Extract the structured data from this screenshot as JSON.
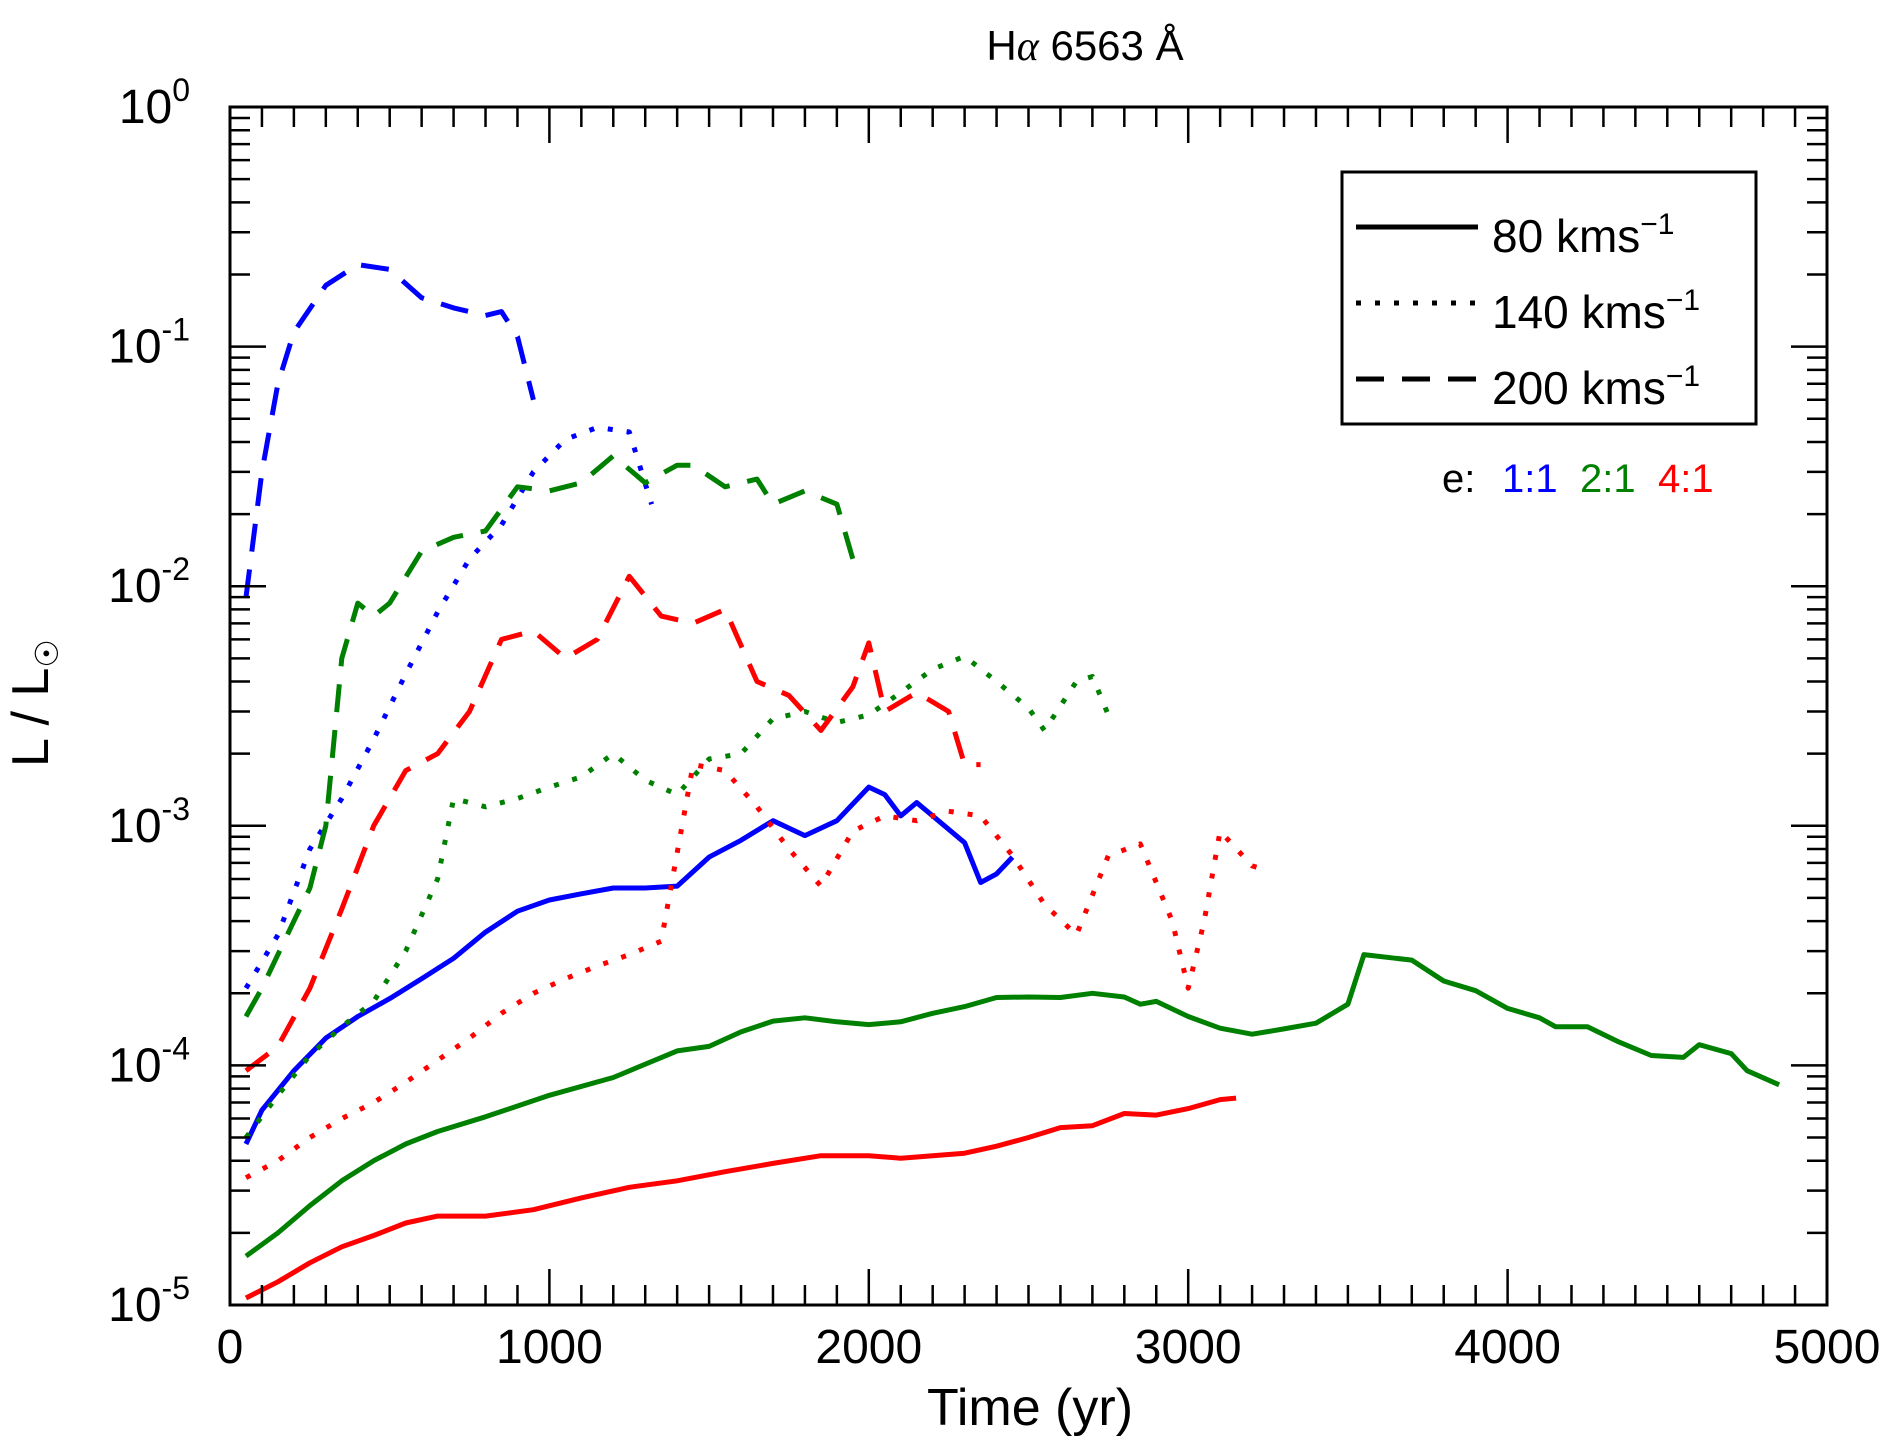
{
  "chart_data": {
    "type": "line",
    "title": "Hα 6563 Å",
    "title_main": "H",
    "title_italic": "α",
    "title_rest": " 6563 Å",
    "xlabel": "Time (yr)",
    "ylabel": "L / L☉",
    "ylabel_main": "L / L",
    "ylabel_sub": "☉",
    "xlim": [
      0,
      5000
    ],
    "ylim": [
      1e-05,
      1
    ],
    "yscale": "log",
    "x_ticks": [
      0,
      1000,
      2000,
      3000,
      4000,
      5000
    ],
    "x_tick_labels": [
      "0",
      "1000",
      "2000",
      "3000",
      "4000",
      "5000"
    ],
    "y_ticks": [
      1e-05,
      0.0001,
      0.001,
      0.01,
      0.1,
      1
    ],
    "y_tick_labels": [
      {
        "base": "10",
        "exp": "-5"
      },
      {
        "base": "10",
        "exp": "-4"
      },
      {
        "base": "10",
        "exp": "-3"
      },
      {
        "base": "10",
        "exp": "-2"
      },
      {
        "base": "10",
        "exp": "-1"
      },
      {
        "base": "10",
        "exp": "0"
      }
    ],
    "legend": {
      "placement": "top-right",
      "entries": [
        {
          "style": "solid",
          "label": "80 kms",
          "sup": "−1"
        },
        {
          "style": "dotted",
          "label": "140 kms",
          "sup": "−1"
        },
        {
          "style": "dashed",
          "label": "200 kms",
          "sup": "−1"
        }
      ]
    },
    "ratio_key": {
      "prefix": "e:",
      "items": [
        {
          "label": "1:1",
          "color": "#0000ff"
        },
        {
          "label": "2:1",
          "color": "#008000"
        },
        {
          "label": "4:1",
          "color": "#ff0000"
        }
      ]
    },
    "series": [
      {
        "name": "80 kms-1 e 1:1",
        "style": "solid",
        "color": "#0000ff",
        "points": [
          [
            50,
            4.7e-05
          ],
          [
            100,
            6.5e-05
          ],
          [
            200,
            9.5e-05
          ],
          [
            300,
            0.00013
          ],
          [
            400,
            0.00016
          ],
          [
            500,
            0.00019
          ],
          [
            600,
            0.00023
          ],
          [
            700,
            0.00028
          ],
          [
            800,
            0.00036
          ],
          [
            900,
            0.00044
          ],
          [
            1000,
            0.00049
          ],
          [
            1100,
            0.00052
          ],
          [
            1200,
            0.00055
          ],
          [
            1300,
            0.00055
          ],
          [
            1400,
            0.00056
          ],
          [
            1500,
            0.00074
          ],
          [
            1600,
            0.00087
          ],
          [
            1700,
            0.00105
          ],
          [
            1800,
            0.00091
          ],
          [
            1900,
            0.00105
          ],
          [
            2000,
            0.00145
          ],
          [
            2050,
            0.00135
          ],
          [
            2100,
            0.0011
          ],
          [
            2150,
            0.00125
          ],
          [
            2200,
            0.0011
          ],
          [
            2300,
            0.00085
          ],
          [
            2350,
            0.00058
          ],
          [
            2400,
            0.00063
          ],
          [
            2450,
            0.00074
          ]
        ]
      },
      {
        "name": "140 kms-1 e 1:1",
        "style": "dotted",
        "color": "#0000ff",
        "points": [
          [
            50,
            0.00021
          ],
          [
            150,
            0.00035
          ],
          [
            250,
            0.0008
          ],
          [
            350,
            0.0013
          ],
          [
            450,
            0.0023
          ],
          [
            550,
            0.0043
          ],
          [
            650,
            0.0078
          ],
          [
            750,
            0.013
          ],
          [
            850,
            0.018
          ],
          [
            950,
            0.03
          ],
          [
            1050,
            0.041
          ],
          [
            1150,
            0.046
          ],
          [
            1250,
            0.044
          ],
          [
            1320,
            0.022
          ]
        ]
      },
      {
        "name": "200 kms-1 e 1:1",
        "style": "dashed",
        "color": "#0000ff",
        "points": [
          [
            50,
            0.009
          ],
          [
            100,
            0.03
          ],
          [
            150,
            0.07
          ],
          [
            200,
            0.115
          ],
          [
            300,
            0.18
          ],
          [
            400,
            0.22
          ],
          [
            500,
            0.21
          ],
          [
            600,
            0.16
          ],
          [
            700,
            0.145
          ],
          [
            800,
            0.135
          ],
          [
            850,
            0.14
          ],
          [
            900,
            0.11
          ],
          [
            950,
            0.06
          ]
        ]
      },
      {
        "name": "80 kms-1 e 2:1",
        "style": "solid",
        "color": "#008000",
        "points": [
          [
            50,
            1.6e-05
          ],
          [
            150,
            2e-05
          ],
          [
            250,
            2.6e-05
          ],
          [
            350,
            3.3e-05
          ],
          [
            450,
            4e-05
          ],
          [
            550,
            4.7e-05
          ],
          [
            650,
            5.3e-05
          ],
          [
            800,
            6.1e-05
          ],
          [
            1000,
            7.5e-05
          ],
          [
            1200,
            8.9e-05
          ],
          [
            1400,
            0.000115
          ],
          [
            1500,
            0.00012
          ],
          [
            1600,
            0.000138
          ],
          [
            1700,
            0.000153
          ],
          [
            1800,
            0.000158
          ],
          [
            1900,
            0.000152
          ],
          [
            2000,
            0.000148
          ],
          [
            2100,
            0.000152
          ],
          [
            2200,
            0.000165
          ],
          [
            2300,
            0.000176
          ],
          [
            2400,
            0.000192
          ],
          [
            2500,
            0.000193
          ],
          [
            2600,
            0.000192
          ],
          [
            2700,
            0.0002
          ],
          [
            2800,
            0.000193
          ],
          [
            2850,
            0.00018
          ],
          [
            2900,
            0.000185
          ],
          [
            3000,
            0.00016
          ],
          [
            3100,
            0.000143
          ],
          [
            3200,
            0.000135
          ],
          [
            3300,
            0.000142
          ],
          [
            3400,
            0.00015
          ],
          [
            3500,
            0.00018
          ],
          [
            3550,
            0.00029
          ],
          [
            3650,
            0.00028
          ],
          [
            3700,
            0.000275
          ],
          [
            3800,
            0.000225
          ],
          [
            3900,
            0.000205
          ],
          [
            4000,
            0.000173
          ],
          [
            4100,
            0.000158
          ],
          [
            4150,
            0.000145
          ],
          [
            4250,
            0.000145
          ],
          [
            4350,
            0.000125
          ],
          [
            4450,
            0.00011
          ],
          [
            4550,
            0.000108
          ],
          [
            4600,
            0.000122
          ],
          [
            4700,
            0.000112
          ],
          [
            4750,
            9.5e-05
          ],
          [
            4850,
            8.3e-05
          ]
        ]
      },
      {
        "name": "140 kms-1 e 2:1",
        "style": "dotted",
        "color": "#008000",
        "points": [
          [
            50,
            5e-05
          ],
          [
            150,
            7.5e-05
          ],
          [
            250,
            0.00011
          ],
          [
            350,
            0.000145
          ],
          [
            450,
            0.000185
          ],
          [
            550,
            0.0003
          ],
          [
            650,
            0.0006
          ],
          [
            700,
            0.0013
          ],
          [
            800,
            0.0012
          ],
          [
            900,
            0.0013
          ],
          [
            1000,
            0.00145
          ],
          [
            1100,
            0.0016
          ],
          [
            1200,
            0.002
          ],
          [
            1300,
            0.00155
          ],
          [
            1400,
            0.00135
          ],
          [
            1500,
            0.0019
          ],
          [
            1600,
            0.002
          ],
          [
            1700,
            0.0028
          ],
          [
            1800,
            0.003
          ],
          [
            1900,
            0.0027
          ],
          [
            2000,
            0.0029
          ],
          [
            2100,
            0.0036
          ],
          [
            2200,
            0.0045
          ],
          [
            2300,
            0.0051
          ],
          [
            2400,
            0.004
          ],
          [
            2500,
            0.0031
          ],
          [
            2550,
            0.0025
          ],
          [
            2650,
            0.004
          ],
          [
            2700,
            0.0042
          ],
          [
            2750,
            0.0029
          ]
        ]
      },
      {
        "name": "200 kms-1 e 2:1",
        "style": "dashed",
        "color": "#008000",
        "points": [
          [
            50,
            0.00016
          ],
          [
            100,
            0.00021
          ],
          [
            150,
            0.00029
          ],
          [
            200,
            0.0004
          ],
          [
            250,
            0.00055
          ],
          [
            300,
            0.001
          ],
          [
            350,
            0.005
          ],
          [
            400,
            0.0085
          ],
          [
            450,
            0.0075
          ],
          [
            500,
            0.0085
          ],
          [
            600,
            0.014
          ],
          [
            700,
            0.016
          ],
          [
            800,
            0.017
          ],
          [
            900,
            0.026
          ],
          [
            1000,
            0.025
          ],
          [
            1100,
            0.027
          ],
          [
            1200,
            0.035
          ],
          [
            1300,
            0.027
          ],
          [
            1400,
            0.032
          ],
          [
            1450,
            0.032
          ],
          [
            1550,
            0.026
          ],
          [
            1650,
            0.028
          ],
          [
            1700,
            0.022
          ],
          [
            1800,
            0.025
          ],
          [
            1900,
            0.022
          ],
          [
            1950,
            0.013
          ]
        ]
      },
      {
        "name": "80 kms-1 e 4:1",
        "style": "solid",
        "color": "#ff0000",
        "points": [
          [
            50,
            1.07e-05
          ],
          [
            150,
            1.25e-05
          ],
          [
            250,
            1.5e-05
          ],
          [
            350,
            1.75e-05
          ],
          [
            450,
            1.95e-05
          ],
          [
            550,
            2.2e-05
          ],
          [
            650,
            2.35e-05
          ],
          [
            800,
            2.35e-05
          ],
          [
            950,
            2.5e-05
          ],
          [
            1100,
            2.8e-05
          ],
          [
            1250,
            3.1e-05
          ],
          [
            1400,
            3.3e-05
          ],
          [
            1550,
            3.6e-05
          ],
          [
            1700,
            3.9e-05
          ],
          [
            1850,
            4.2e-05
          ],
          [
            2000,
            4.2e-05
          ],
          [
            2100,
            4.1e-05
          ],
          [
            2200,
            4.2e-05
          ],
          [
            2300,
            4.3e-05
          ],
          [
            2400,
            4.6e-05
          ],
          [
            2500,
            5e-05
          ],
          [
            2600,
            5.5e-05
          ],
          [
            2700,
            5.6e-05
          ],
          [
            2800,
            6.3e-05
          ],
          [
            2900,
            6.2e-05
          ],
          [
            3000,
            6.6e-05
          ],
          [
            3100,
            7.2e-05
          ],
          [
            3150,
            7.3e-05
          ]
        ]
      },
      {
        "name": "140 kms-1 e 4:1",
        "style": "dotted",
        "color": "#ff0000",
        "points": [
          [
            50,
            3.4e-05
          ],
          [
            150,
            4e-05
          ],
          [
            250,
            5e-05
          ],
          [
            350,
            6e-05
          ],
          [
            450,
            7e-05
          ],
          [
            550,
            8.5e-05
          ],
          [
            650,
            0.000105
          ],
          [
            750,
            0.00013
          ],
          [
            850,
            0.000165
          ],
          [
            950,
            0.0002
          ],
          [
            1050,
            0.00023
          ],
          [
            1150,
            0.00026
          ],
          [
            1250,
            0.00029
          ],
          [
            1350,
            0.00033
          ],
          [
            1450,
            0.0018
          ],
          [
            1550,
            0.0017
          ],
          [
            1650,
            0.0012
          ],
          [
            1750,
            0.0008
          ],
          [
            1850,
            0.00056
          ],
          [
            1950,
            0.00095
          ],
          [
            2050,
            0.0011
          ],
          [
            2150,
            0.00105
          ],
          [
            2250,
            0.00115
          ],
          [
            2350,
            0.0011
          ],
          [
            2450,
            0.00075
          ],
          [
            2550,
            0.00047
          ],
          [
            2650,
            0.00035
          ],
          [
            2750,
            0.00075
          ],
          [
            2850,
            0.00084
          ],
          [
            2950,
            0.0004
          ],
          [
            3000,
            0.00021
          ],
          [
            3050,
            0.0004
          ],
          [
            3100,
            0.00095
          ],
          [
            3200,
            0.00068
          ],
          [
            3250,
            0.00065
          ]
        ]
      },
      {
        "name": "200 kms-1 e 4:1",
        "style": "dashed",
        "color": "#ff0000",
        "points": [
          [
            50,
            9.5e-05
          ],
          [
            150,
            0.00012
          ],
          [
            250,
            0.00021
          ],
          [
            350,
            0.00045
          ],
          [
            450,
            0.001
          ],
          [
            550,
            0.0017
          ],
          [
            650,
            0.002
          ],
          [
            750,
            0.003
          ],
          [
            850,
            0.006
          ],
          [
            950,
            0.0065
          ],
          [
            1050,
            0.005
          ],
          [
            1150,
            0.006
          ],
          [
            1250,
            0.011
          ],
          [
            1350,
            0.0075
          ],
          [
            1450,
            0.007
          ],
          [
            1550,
            0.008
          ],
          [
            1650,
            0.004
          ],
          [
            1750,
            0.0035
          ],
          [
            1850,
            0.0025
          ],
          [
            1950,
            0.0038
          ],
          [
            2000,
            0.0058
          ],
          [
            2050,
            0.003
          ],
          [
            2150,
            0.0036
          ],
          [
            2250,
            0.003
          ],
          [
            2300,
            0.0018
          ],
          [
            2350,
            0.0018
          ]
        ]
      }
    ]
  }
}
